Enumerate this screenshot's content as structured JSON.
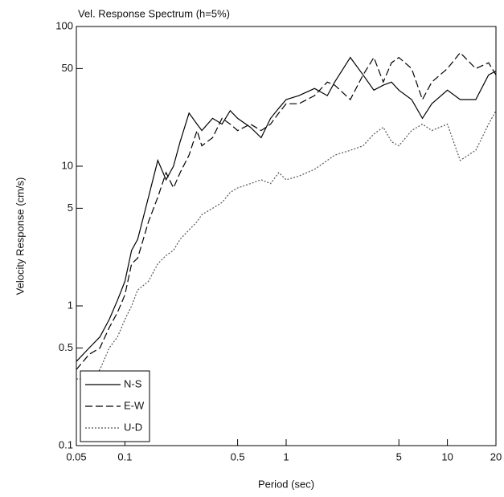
{
  "chart_data": {
    "type": "line",
    "title": "Vel. Response Spectrum (h=5%)",
    "x_label": "Period (sec)",
    "y_label": "Velocity Response (cm/s)",
    "log_x": true,
    "log_y": true,
    "xlim": [
      0.05,
      20
    ],
    "ylim": [
      0.1,
      100
    ],
    "xticks": [
      0.05,
      0.1,
      0.5,
      1,
      5,
      10,
      20
    ],
    "yticks": [
      0.1,
      0.5,
      1,
      5,
      10,
      50,
      100
    ],
    "legend": "lower left",
    "x": [
      0.05,
      0.06,
      0.07,
      0.08,
      0.09,
      0.1,
      0.11,
      0.12,
      0.14,
      0.16,
      0.18,
      0.2,
      0.22,
      0.25,
      0.28,
      0.3,
      0.35,
      0.4,
      0.45,
      0.5,
      0.6,
      0.7,
      0.8,
      0.9,
      1,
      1.2,
      1.5,
      1.8,
      2,
      2.5,
      3,
      3.5,
      4,
      4.5,
      5,
      6,
      7,
      8,
      10,
      12,
      15,
      18,
      20
    ],
    "series": [
      {
        "name": "N-S",
        "color": "#000000",
        "dash": "solid",
        "values": [
          0.4,
          0.5,
          0.6,
          0.8,
          1.1,
          1.5,
          2.5,
          3,
          6,
          11,
          8,
          10,
          15,
          24,
          20,
          18,
          22,
          20,
          25,
          22,
          19,
          16,
          22,
          26,
          30,
          32,
          36,
          32,
          40,
          60,
          45,
          35,
          38,
          40,
          35,
          30,
          22,
          28,
          35,
          30,
          30,
          45,
          48
        ]
      },
      {
        "name": "E-W",
        "color": "#000000",
        "dash": "dashed",
        "values": [
          0.35,
          0.45,
          0.5,
          0.7,
          0.9,
          1.2,
          2,
          2.2,
          4,
          6,
          9,
          7,
          9,
          12,
          18,
          14,
          16,
          22,
          20,
          18,
          20,
          18,
          20,
          24,
          28,
          28,
          32,
          40,
          38,
          30,
          45,
          60,
          40,
          55,
          60,
          50,
          30,
          40,
          50,
          65,
          50,
          55,
          45
        ]
      },
      {
        "name": "U-D",
        "color": "#555555",
        "dash": "dotted",
        "values": [
          0.3,
          0.3,
          0.35,
          0.5,
          0.6,
          0.8,
          1.0,
          1.3,
          1.5,
          2,
          2.3,
          2.5,
          3,
          3.5,
          4,
          4.5,
          5,
          5.5,
          6.5,
          7,
          7.5,
          8,
          7.5,
          9,
          8,
          8.5,
          9.5,
          11,
          12,
          13,
          14,
          17,
          19,
          15,
          14,
          18,
          20,
          18,
          20,
          11,
          13,
          20,
          25
        ]
      }
    ]
  }
}
